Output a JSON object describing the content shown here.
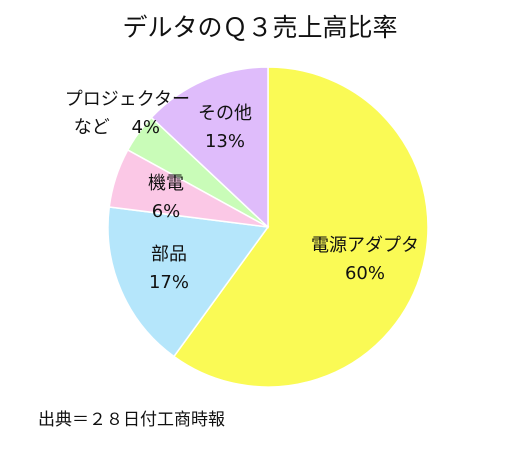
{
  "chart_data": {
    "type": "pie",
    "title": "デルタのＱ３売上高比率",
    "start_angle_deg": 0,
    "direction": "clockwise",
    "slices": [
      {
        "name": "電源アダプタ",
        "value": 60,
        "value_label": "60%",
        "color": "#fafa55"
      },
      {
        "name": "部品",
        "value": 17,
        "value_label": "17%",
        "color": "#b5e6fb"
      },
      {
        "name": "機電",
        "value": 6,
        "value_label": "6%",
        "color": "#fbc8e6"
      },
      {
        "name": "プロジェクターなど",
        "name_line1": "プロジェクター",
        "name_line2": "など",
        "value": 4,
        "value_label": "4%",
        "color": "#c9fcb8"
      },
      {
        "name": "その他",
        "value": 13,
        "value_label": "13%",
        "color": "#dfbcfb"
      }
    ]
  },
  "source": "出典＝２８日付工商時報"
}
